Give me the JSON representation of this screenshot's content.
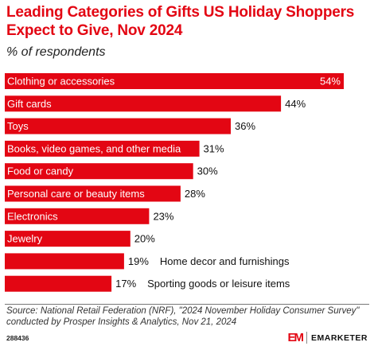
{
  "header": {
    "title": "Leading Categories of Gifts US Holiday Shoppers Expect to Give, Nov 2024",
    "subtitle": "% of respondents"
  },
  "chart_data": {
    "type": "bar",
    "orientation": "horizontal",
    "categories": [
      "Clothing or accessories",
      "Gift cards",
      "Toys",
      "Books, video games, and other media",
      "Food or candy",
      "Personal care or beauty items",
      "Electronics",
      "Jewelry",
      "Home decor and furnishings",
      "Sporting goods or leisure items"
    ],
    "values": [
      54,
      44,
      36,
      31,
      30,
      28,
      23,
      20,
      19,
      17
    ],
    "value_labels": [
      "54%",
      "44%",
      "36%",
      "31%",
      "30%",
      "28%",
      "23%",
      "20%",
      "19%",
      "17%"
    ],
    "xlim": [
      0,
      54
    ],
    "bar_color": "#e30613",
    "grid": false,
    "legend": "none"
  },
  "footer": {
    "source": "Source: National Retail Federation (NRF), \"2024 November Holiday Consumer Survey\" conducted by Prosper Insights & Analytics, Nov 21, 2024",
    "chart_id": "288436",
    "logo_mark": "EM",
    "logo_text": "EMARKETER"
  }
}
